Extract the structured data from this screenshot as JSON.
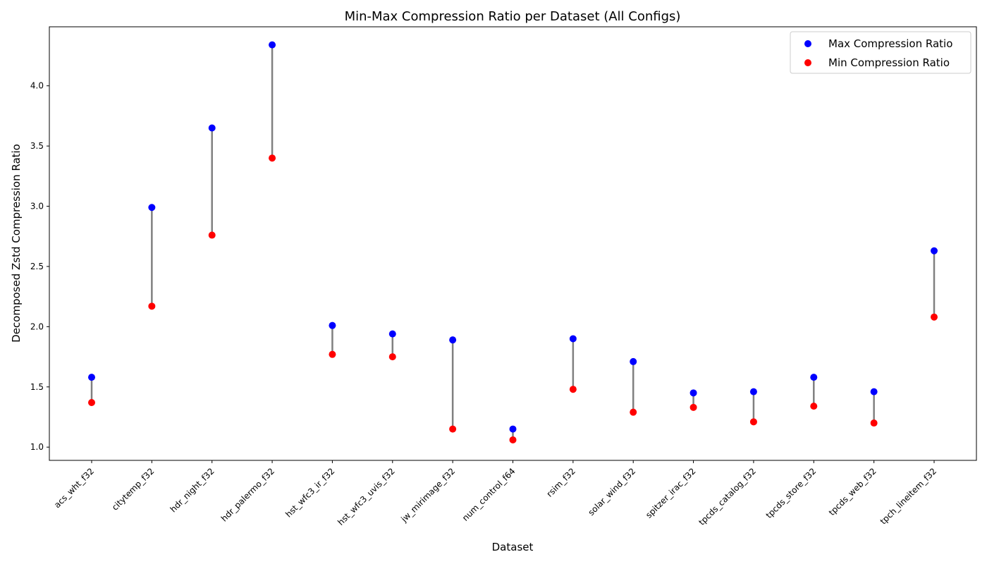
{
  "chart_data": {
    "type": "scatter",
    "title": "Min-Max Compression Ratio per Dataset (All Configs)",
    "xlabel": "Dataset",
    "ylabel": "Decomposed Zstd Compression Ratio",
    "categories": [
      "acs_wht_f32",
      "citytemp_f32",
      "hdr_night_f32",
      "hdr_palermo_f32",
      "hst_wfc3_ir_f32",
      "hst_wfc3_uvis_f32",
      "jw_mirimage_f32",
      "num_control_f64",
      "rsim_f32",
      "solar_wind_f32",
      "spitzer_irac_f32",
      "tpcds_catalog_f32",
      "tpcds_store_f32",
      "tpcds_web_f32",
      "tpch_lineitem_f32"
    ],
    "series": [
      {
        "name": "Max Compression Ratio",
        "color": "#0000ff",
        "values": [
          1.58,
          2.99,
          3.65,
          4.34,
          2.01,
          1.94,
          1.89,
          1.15,
          1.9,
          1.71,
          1.45,
          1.46,
          1.58,
          1.46,
          2.63
        ]
      },
      {
        "name": "Min Compression Ratio",
        "color": "#ff0000",
        "values": [
          1.37,
          2.17,
          2.76,
          3.4,
          1.77,
          1.75,
          1.15,
          1.06,
          1.48,
          1.29,
          1.33,
          1.21,
          1.34,
          1.2,
          2.08
        ]
      }
    ],
    "connector_color": "#808080",
    "ylim": [
      0.89,
      4.49
    ],
    "yticks": [
      "1.0",
      "1.5",
      "2.0",
      "2.5",
      "3.0",
      "3.5",
      "4.0"
    ],
    "legend": "top-right",
    "grid": false
  }
}
